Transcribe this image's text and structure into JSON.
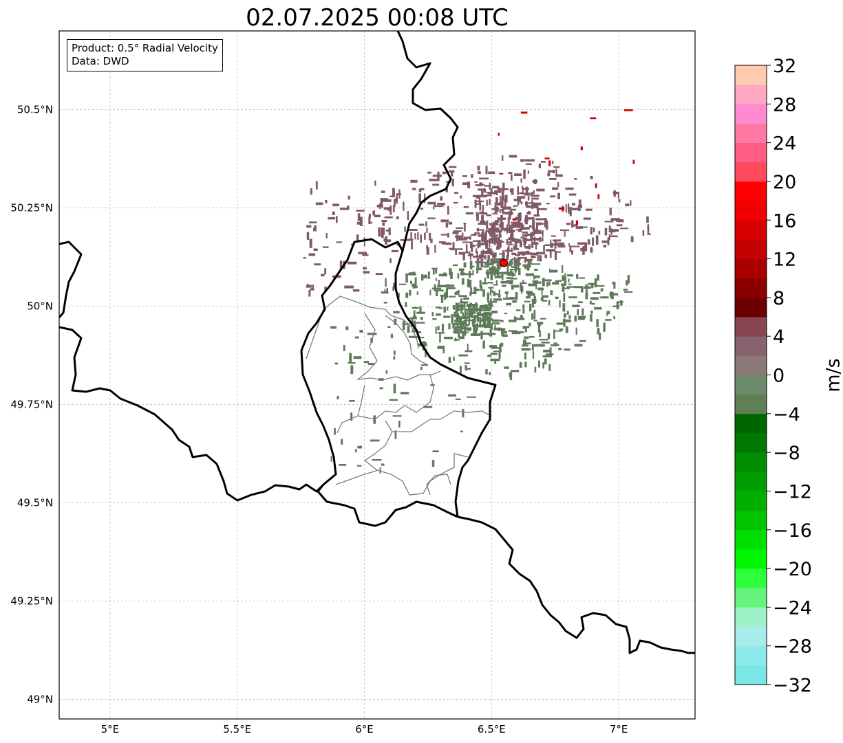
{
  "title": "02.07.2025 00:08 UTC",
  "info": {
    "product": "Product: 0.5° Radial Velocity",
    "source": "Data: DWD"
  },
  "map": {
    "lon_range": [
      4.8,
      7.3
    ],
    "lat_range": [
      48.95,
      50.7
    ],
    "lon_ticks": [
      {
        "value": 5.0,
        "label": "5°E"
      },
      {
        "value": 5.5,
        "label": "5.5°E"
      },
      {
        "value": 6.0,
        "label": "6°E"
      },
      {
        "value": 6.5,
        "label": "6.5°E"
      },
      {
        "value": 7.0,
        "label": "7°E"
      }
    ],
    "lat_ticks": [
      {
        "value": 49.0,
        "label": "49°N"
      },
      {
        "value": 49.25,
        "label": "49.25°N"
      },
      {
        "value": 49.5,
        "label": "49.5°N"
      },
      {
        "value": 49.75,
        "label": "49.75°N"
      },
      {
        "value": 50.0,
        "label": "50°N"
      },
      {
        "value": 50.25,
        "label": "50.25°N"
      },
      {
        "value": 50.5,
        "label": "50.5°N"
      }
    ],
    "gridlines": true,
    "radar_site": {
      "lon": 6.548,
      "lat": 50.11,
      "color": "#ff0000"
    },
    "echo_colors": {
      "approaching": "#5f7a5a",
      "receding": "#7f5a66",
      "strong_red": "#d40000"
    }
  },
  "colorbar": {
    "label": "m/s",
    "min": -32,
    "max": 32,
    "step": 2,
    "ticks": [
      {
        "value": 32,
        "label": "32"
      },
      {
        "value": 28,
        "label": "28"
      },
      {
        "value": 24,
        "label": "24"
      },
      {
        "value": 20,
        "label": "20"
      },
      {
        "value": 16,
        "label": "16"
      },
      {
        "value": 12,
        "label": "12"
      },
      {
        "value": 8,
        "label": "8"
      },
      {
        "value": 4,
        "label": "4"
      },
      {
        "value": 0,
        "label": "0"
      },
      {
        "value": -4,
        "label": "−4"
      },
      {
        "value": -8,
        "label": "−8"
      },
      {
        "value": -12,
        "label": "−12"
      },
      {
        "value": -16,
        "label": "−16"
      },
      {
        "value": -20,
        "label": "−20"
      },
      {
        "value": -24,
        "label": "−24"
      },
      {
        "value": -28,
        "label": "−28"
      },
      {
        "value": -32,
        "label": "−32"
      }
    ],
    "colors": [
      "#7ae6e6",
      "#90eaea",
      "#a8ecec",
      "#9ef2c8",
      "#66f57c",
      "#2eff3c",
      "#00f500",
      "#00de00",
      "#00c400",
      "#00b000",
      "#009e00",
      "#008c00",
      "#007800",
      "#006600",
      "#5f7f57",
      "#6d8a6b",
      "#8c7878",
      "#87636f",
      "#874652",
      "#6c0000",
      "#8a0000",
      "#a80000",
      "#c40000",
      "#d60000",
      "#f00000",
      "#ff0000",
      "#ff4a5e",
      "#ff5d84",
      "#ff79a4",
      "#ff8ad0",
      "#ffa8c4",
      "#ffcbb0"
    ]
  }
}
